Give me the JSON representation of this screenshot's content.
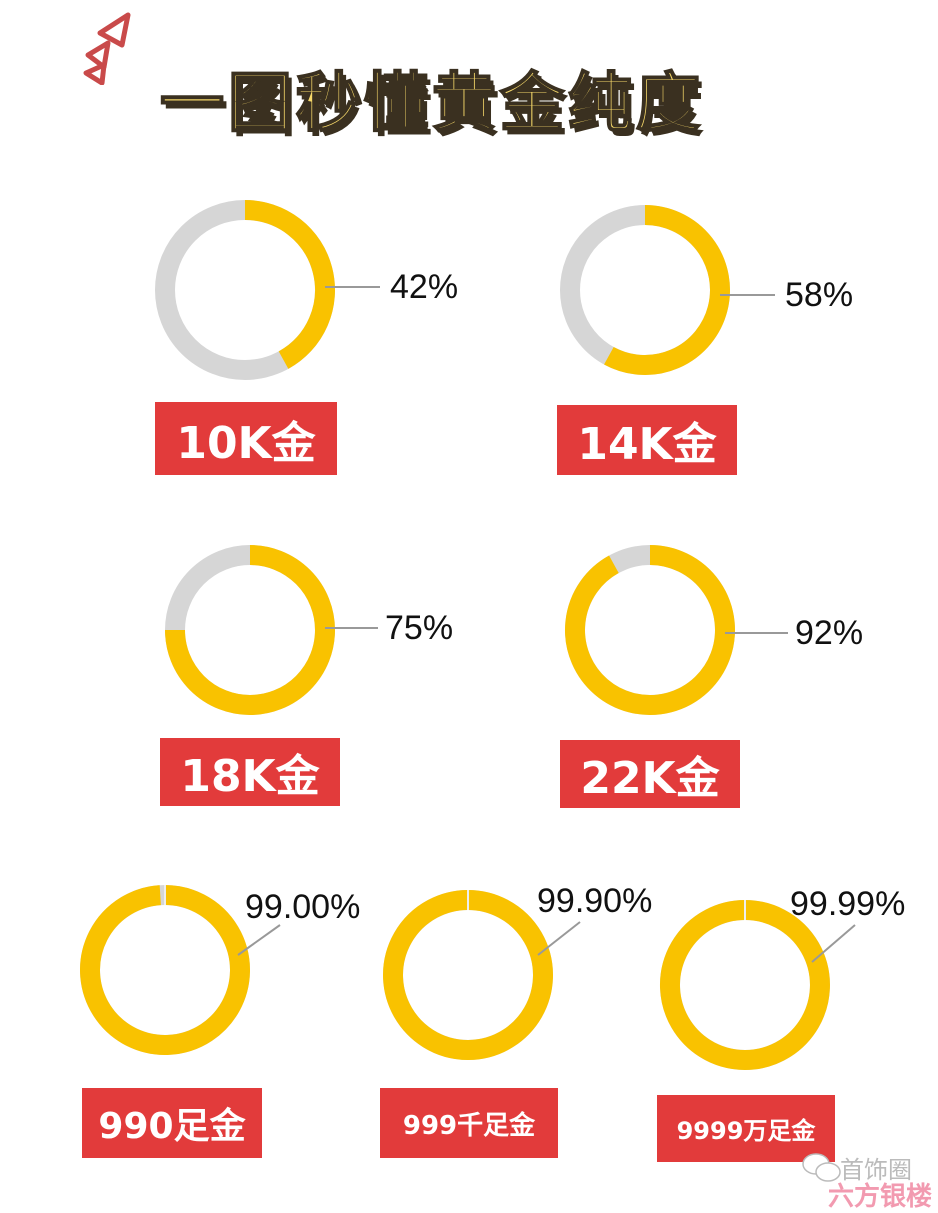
{
  "title": "一图秒懂黄金纯度",
  "colors": {
    "gold": "#F9C200",
    "remainder": "#D6D6D6",
    "label_bg": "#E23B3B",
    "leader": "#999999"
  },
  "chart_data": {
    "type": "pie",
    "variant": "donut",
    "title": "一图秒懂黄金纯度",
    "items": [
      {
        "label": "10K金",
        "value": 42,
        "value_label": "42%"
      },
      {
        "label": "14K金",
        "value": 58,
        "value_label": "58%"
      },
      {
        "label": "18K金",
        "value": 75,
        "value_label": "75%"
      },
      {
        "label": "22K金",
        "value": 92,
        "value_label": "92%"
      },
      {
        "label": "990足金",
        "value": 99.0,
        "value_label": "99.00%"
      },
      {
        "label": "999千足金",
        "value": 99.9,
        "value_label": "99.90%"
      },
      {
        "label": "9999万足金",
        "value": 99.99,
        "value_label": "99.99%"
      }
    ]
  },
  "watermark": {
    "line1": "首饰圈",
    "line2": "六方银楼"
  }
}
